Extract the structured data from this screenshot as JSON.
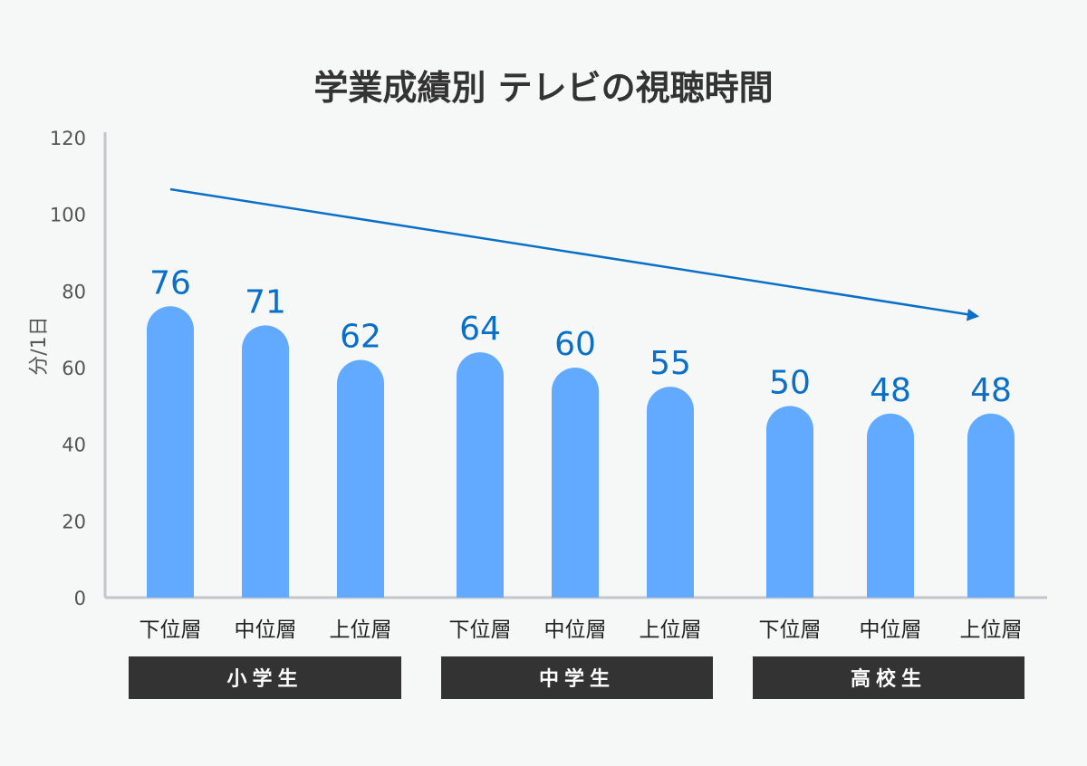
{
  "chart_data": {
    "type": "bar",
    "title": "学業成績別 テレビの視聴時間",
    "ylabel": "分/1日",
    "xlabel": "",
    "ylim": [
      0,
      120
    ],
    "yticks": [
      "0",
      "20",
      "40",
      "60",
      "80",
      "100",
      "120"
    ],
    "grid": false,
    "groups": [
      {
        "name": "小学生",
        "categories": [
          "下位層",
          "中位層",
          "上位層"
        ],
        "values": [
          76,
          71,
          62
        ]
      },
      {
        "name": "中学生",
        "categories": [
          "下位層",
          "中位層",
          "上位層"
        ],
        "values": [
          64,
          60,
          55
        ]
      },
      {
        "name": "高校生",
        "categories": [
          "下位層",
          "中位層",
          "上位層"
        ],
        "values": [
          50,
          48,
          48
        ]
      }
    ],
    "annotations": [
      {
        "type": "trend-arrow",
        "direction": "down"
      }
    ],
    "colors": {
      "bar": "#62aaff",
      "data_label": "#0a6fc7",
      "arrow": "#0a6fc7",
      "group_box": "#333333",
      "axis": "#c3c6cb",
      "background": "#f6f8f8"
    }
  }
}
